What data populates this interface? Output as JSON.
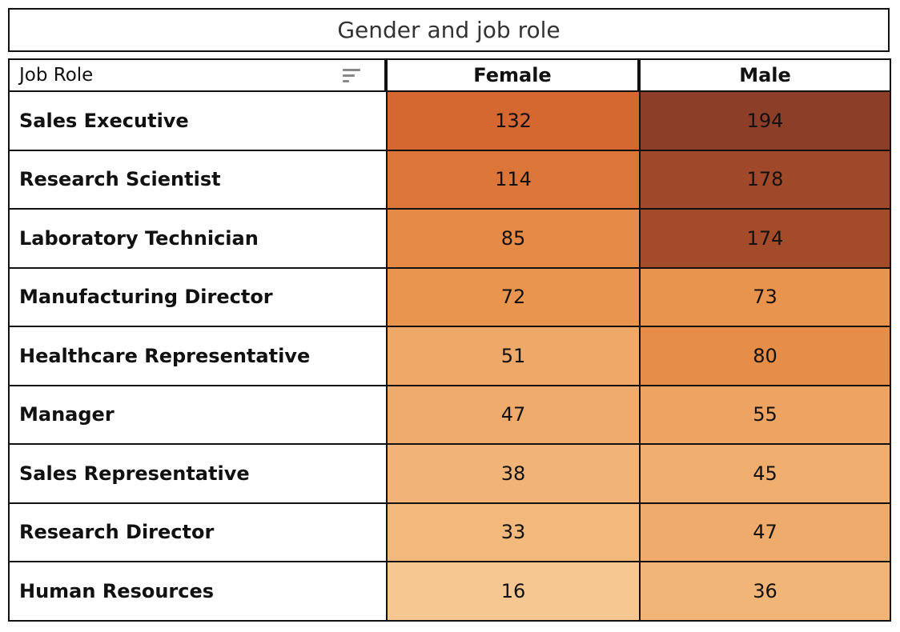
{
  "title": "Gender and job role",
  "header": {
    "row_label": "Job Role",
    "sort_icon": "sort-descending-icon"
  },
  "chart_data": {
    "type": "heatmap",
    "title": "Gender and job role",
    "row_header": "Job Role",
    "columns": [
      "Female",
      "Male"
    ],
    "rows": [
      "Sales Executive",
      "Research Scientist",
      "Laboratory Technician",
      "Manufacturing Director",
      "Healthcare Representative",
      "Manager",
      "Sales Representative",
      "Research Director",
      "Human Resources"
    ],
    "values": [
      [
        132,
        194
      ],
      [
        114,
        178
      ],
      [
        85,
        174
      ],
      [
        72,
        73
      ],
      [
        51,
        80
      ],
      [
        47,
        55
      ],
      [
        38,
        45
      ],
      [
        33,
        47
      ],
      [
        16,
        36
      ]
    ],
    "color_scale": [
      "#f6c790",
      "#e8924a",
      "#d4652f",
      "#8c3e28"
    ]
  }
}
